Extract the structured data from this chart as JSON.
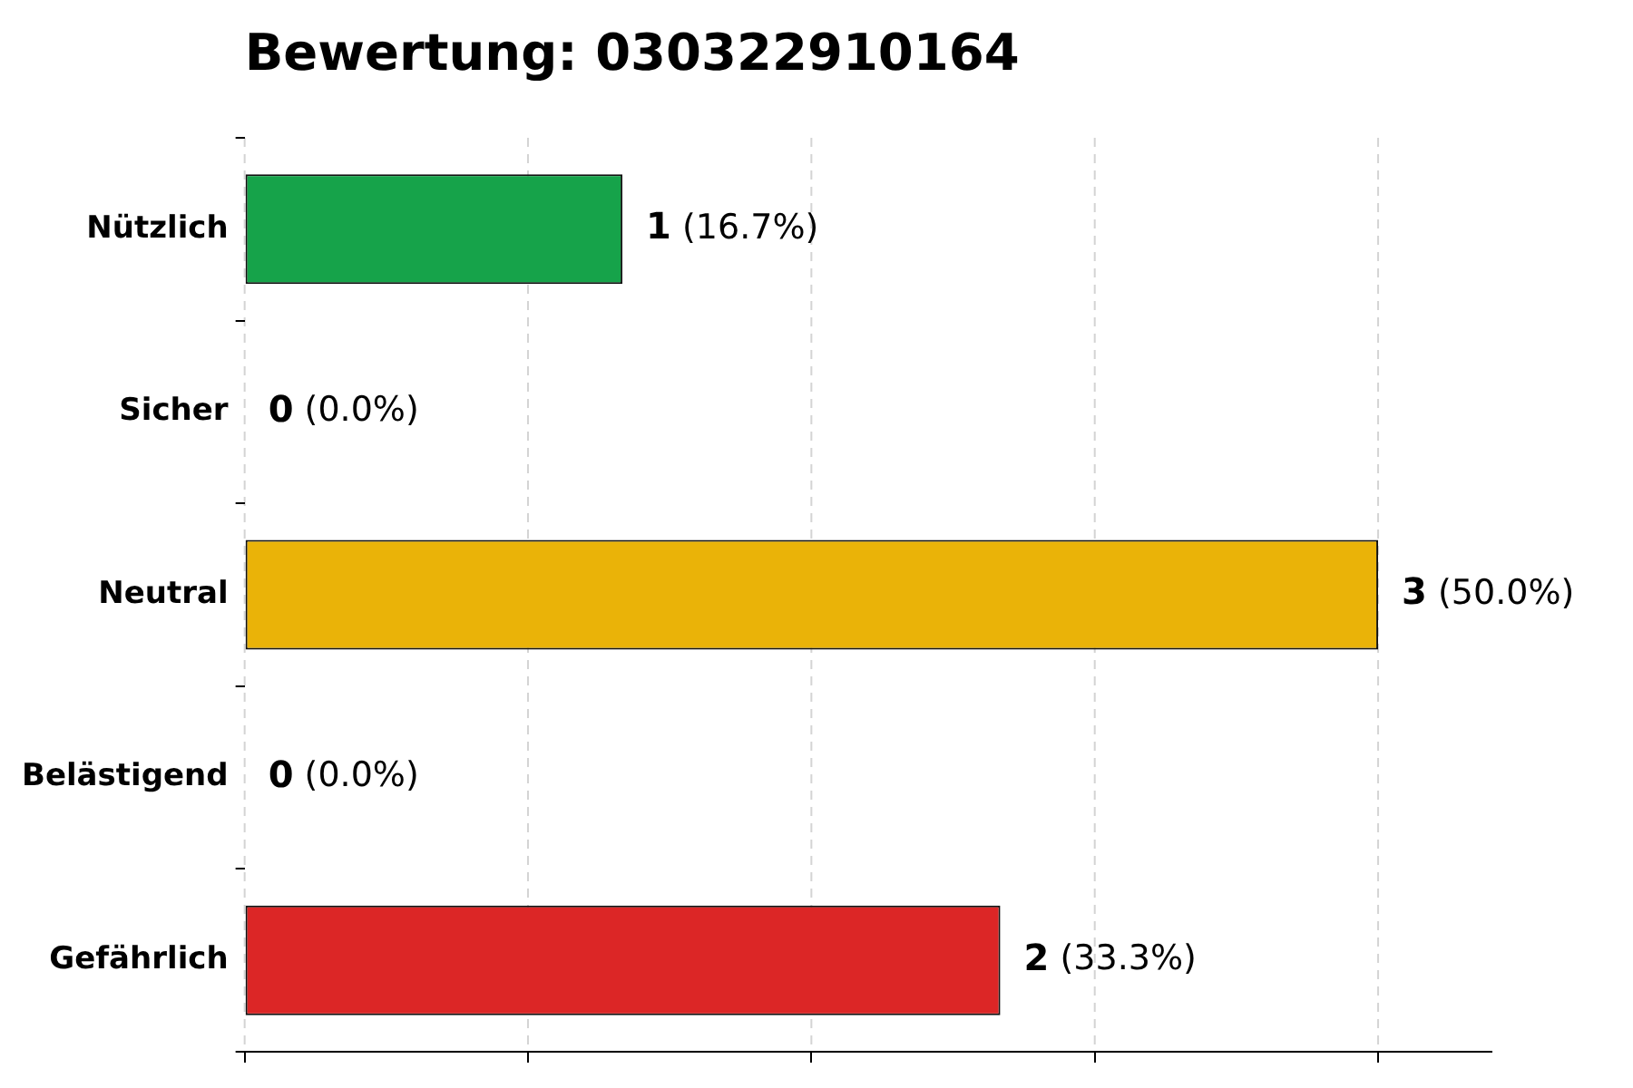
{
  "chart_data": {
    "type": "bar",
    "orientation": "horizontal",
    "title": "Bewertung: 030322910164",
    "categories": [
      "Nützlich",
      "Sicher",
      "Neutral",
      "Belästigend",
      "Gefährlich"
    ],
    "values": [
      1,
      0,
      3,
      0,
      2
    ],
    "colors": [
      "#16a34a",
      "#9ca3af",
      "#eab308",
      "#9ca3af",
      "#dc2626"
    ],
    "value_labels": [
      "1 (16.7%)",
      "0 (0.0%)",
      "3 (50.0%)",
      "0 (0.0%)",
      "2 (33.3%)"
    ],
    "xlim": [
      0,
      3.3
    ],
    "xticks": [
      {
        "value": 0,
        "label": null
      },
      {
        "value": 0.75,
        "label": null
      },
      {
        "value": 1.5,
        "label": null
      },
      {
        "value": 2.25,
        "label": null
      },
      {
        "value": 3,
        "label": null
      }
    ],
    "tick_labels": "y",
    "grid": "x",
    "legend": false
  }
}
